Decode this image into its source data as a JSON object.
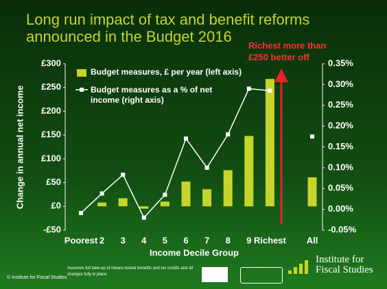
{
  "chart_data": {
    "type": "bar_line",
    "title": "Long run impact of tax and benefit reforms announced in the Budget 2016",
    "x_label": "Income Decile Group",
    "y_label": "Change in annual net income",
    "categories": [
      "Poorest",
      "2",
      "3",
      "4",
      "5",
      "6",
      "7",
      "8",
      "9",
      "Richest",
      "All"
    ],
    "series": [
      {
        "name": "Budget measures, £ per year (left axis)",
        "color": "#c6d42c",
        "type": "bar",
        "values": [
          0,
          8,
          17,
          -5,
          10,
          52,
          36,
          76,
          148,
          268,
          61
        ]
      },
      {
        "name": "Budget measures as a % of net income (right axis)",
        "color": "#ffffff",
        "type": "line",
        "axis": "y2",
        "values": [
          -0.009,
          0.038,
          0.083,
          -0.02,
          0.035,
          0.17,
          0.1,
          0.18,
          0.29,
          0.285,
          0.175
        ]
      }
    ],
    "ylim": [
      -50,
      300
    ],
    "yticks": [
      {
        "value": -50,
        "label": "-£50"
      },
      {
        "value": 0,
        "label": "£0"
      },
      {
        "value": 50,
        "label": "£50"
      },
      {
        "value": 100,
        "label": "£100"
      },
      {
        "value": 150,
        "label": "£150"
      },
      {
        "value": 200,
        "label": "£200"
      },
      {
        "value": 250,
        "label": "£250"
      },
      {
        "value": 300,
        "label": "£300"
      }
    ],
    "y2lim": [
      -0.05,
      0.35
    ],
    "y2ticks": [
      {
        "value": -0.05,
        "label": "-0.05%"
      },
      {
        "value": 0,
        "label": "0.00%"
      },
      {
        "value": 0.05,
        "label": "0.05%"
      },
      {
        "value": 0.1,
        "label": "0.10%"
      },
      {
        "value": 0.15,
        "label": "0.15%"
      },
      {
        "value": 0.2,
        "label": "0.20%"
      },
      {
        "value": 0.25,
        "label": "0.25%"
      },
      {
        "value": 0.3,
        "label": "0.30%"
      },
      {
        "value": 0.35,
        "label": "0.35%"
      }
    ],
    "annotation": "Richest more than £250 better off",
    "footnote": "Assumes full take-up of means-tested benefits and tax credits and all changes fully in place",
    "copyright": "© Institute for Fiscal Studies",
    "logo": "Institute for Fiscal Studies"
  }
}
